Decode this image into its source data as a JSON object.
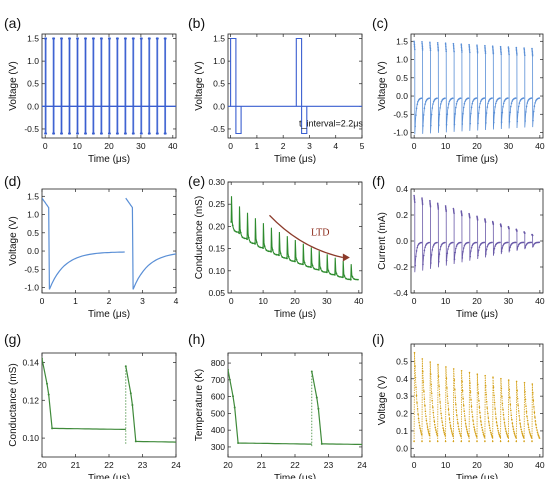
{
  "chart_data": [
    {
      "panel": "(a)",
      "type": "line",
      "color": "#3a5fd0",
      "xlabel": "Time (μs)",
      "ylabel": "Voltage (V)",
      "xlim": [
        -1,
        41
      ],
      "ylim": [
        -0.7,
        1.6
      ],
      "xticks": [
        0,
        10,
        20,
        30,
        40
      ],
      "xtick_labels": [
        "0",
        "10",
        "20",
        "30",
        "40"
      ],
      "yticks": [
        -0.5,
        0.0,
        0.5,
        1.0,
        1.5
      ],
      "ytick_labels": [
        "-0.5",
        "0.0",
        "0.5",
        "1.0",
        "1.5"
      ],
      "pulses": {
        "period": 2.5,
        "count": 16,
        "start": 0,
        "high": 1.5,
        "low": -0.6,
        "baseline": 0.0
      }
    },
    {
      "panel": "(b)",
      "type": "line",
      "color": "#3a5fd0",
      "xlabel": "Time (μs)",
      "ylabel": "Voltage (V)",
      "xlim": [
        -0.1,
        5
      ],
      "ylim": [
        -0.7,
        1.6
      ],
      "xticks": [
        0,
        1,
        2,
        3,
        4,
        5
      ],
      "xtick_labels": [
        "0",
        "1",
        "2",
        "3",
        "4",
        "5"
      ],
      "yticks": [
        -0.5,
        0.0,
        0.5,
        1.0,
        1.5
      ],
      "ytick_labels": [
        "-0.5",
        "0.0",
        "0.5",
        "1.0",
        "1.5"
      ],
      "pulse_times": [
        0,
        2.5
      ],
      "high": 1.5,
      "low": -0.6,
      "high_width": 0.2,
      "low_width": 0.2,
      "annotation": "t_interval=2.2μs"
    },
    {
      "panel": "(c)",
      "type": "line",
      "color": "#5a8fd6",
      "xlabel": "Time (μs)",
      "ylabel": "Voltage (V)",
      "xlim": [
        -1,
        41
      ],
      "ylim": [
        -1.15,
        1.7
      ],
      "xticks": [
        0,
        10,
        20,
        30,
        40
      ],
      "xtick_labels": [
        "0",
        "10",
        "20",
        "30",
        "40"
      ],
      "yticks": [
        -1.0,
        -0.5,
        0.0,
        0.5,
        1.0,
        1.5
      ],
      "ytick_labels": [
        "-1.0",
        "-0.5",
        "0.0",
        "0.5",
        "1.0",
        "1.5"
      ],
      "pulses": {
        "period": 2.5,
        "count": 16,
        "start": 0,
        "peak_first": 1.5,
        "peak_last": 1.3,
        "trough_first": -1.05,
        "trough_last": -0.85,
        "settle": -0.05
      }
    },
    {
      "panel": "(d)",
      "type": "line",
      "color": "#5a8fd6",
      "xlabel": "Time (μs)",
      "ylabel": "Voltage (V)",
      "xlim": [
        0,
        4
      ],
      "ylim": [
        -1.15,
        1.7
      ],
      "xticks": [
        0,
        1,
        2,
        3,
        4
      ],
      "xtick_labels": [
        "0",
        "1",
        "2",
        "3",
        "4"
      ],
      "yticks": [
        -1.0,
        -0.5,
        0.0,
        0.5,
        1.0,
        1.5
      ],
      "ytick_labels": [
        "-1.0",
        "-0.5",
        "0.0",
        "0.5",
        "1.0",
        "1.5"
      ],
      "pulse_times": [
        0,
        2.5
      ],
      "peak": 1.45,
      "trough": -1.05,
      "settle": -0.02
    },
    {
      "panel": "(e)",
      "type": "line",
      "color": "#2e8b2e",
      "xlabel": "Time (μs)",
      "ylabel": "Conductance (mS)",
      "xlim": [
        -1,
        41
      ],
      "ylim": [
        0.05,
        0.3
      ],
      "xticks": [
        0,
        10,
        20,
        30,
        40
      ],
      "xtick_labels": [
        "0",
        "10",
        "20",
        "30",
        "40"
      ],
      "yticks": [
        0.05,
        0.1,
        0.15,
        0.2,
        0.25,
        0.3
      ],
      "ytick_labels": [
        "0.05",
        "0.10",
        "0.15",
        "0.20",
        "0.25",
        "0.30"
      ],
      "annotation": "LTD",
      "pulses": {
        "period": 2.5,
        "count": 16,
        "start": 0,
        "peak_first": 0.268,
        "peak_last": 0.115,
        "floor_first": 0.21,
        "floor_last": 0.08
      }
    },
    {
      "panel": "(f)",
      "type": "line",
      "color": "#6a5aa8",
      "xlabel": "Time (μs)",
      "ylabel": "Current (mA)",
      "xlim": [
        -1,
        41
      ],
      "ylim": [
        -0.4,
        0.4
      ],
      "xticks": [
        0,
        10,
        20,
        30,
        40
      ],
      "xtick_labels": [
        "0",
        "10",
        "20",
        "30",
        "40"
      ],
      "yticks": [
        -0.4,
        -0.2,
        0.0,
        0.2,
        0.4
      ],
      "ytick_labels": [
        "-0.4",
        "-0.2",
        "0.0",
        "0.2",
        "0.4"
      ],
      "pulses": {
        "period": 2.5,
        "count": 16,
        "start": 0,
        "peak_first": 0.35,
        "peak_last": 0.05,
        "trough_first": -0.24,
        "trough_last": -0.05,
        "settle": -0.01
      }
    },
    {
      "panel": "(g)",
      "type": "line",
      "color": "#3f8a3a",
      "xlabel": "Time (μs)",
      "ylabel": "Conductance (mS)",
      "xlim": [
        20,
        24
      ],
      "ylim": [
        0.09,
        0.145
      ],
      "xticks": [
        20,
        21,
        22,
        23,
        24
      ],
      "xtick_labels": [
        "20",
        "21",
        "22",
        "23",
        "24"
      ],
      "yticks": [
        0.1,
        0.12,
        0.14
      ],
      "ytick_labels": [
        "0.10",
        "0.12",
        "0.14"
      ],
      "pulse_times": [
        20,
        22.5
      ],
      "peaks": [
        0.142,
        0.138
      ],
      "floors": [
        0.104,
        0.097
      ]
    },
    {
      "panel": "(h)",
      "type": "line",
      "color": "#3f8a3a",
      "xlabel": "Time (μs)",
      "ylabel": "Temperature (K)",
      "xlim": [
        20,
        24
      ],
      "ylim": [
        240,
        860
      ],
      "xticks": [
        20,
        21,
        22,
        23,
        24
      ],
      "xtick_labels": [
        "20",
        "21",
        "22",
        "23",
        "24"
      ],
      "yticks": [
        300,
        400,
        500,
        600,
        700,
        800
      ],
      "ytick_labels": [
        "300",
        "400",
        "500",
        "600",
        "700",
        "800"
      ],
      "pulse_times": [
        20,
        22.5
      ],
      "peaks": [
        760,
        750
      ],
      "floors": [
        310,
        305
      ]
    },
    {
      "panel": "(i)",
      "type": "line",
      "color": "#d4a017",
      "xlabel": "Time (μs)",
      "ylabel": "Voltage (V)",
      "xlim": [
        -1,
        41
      ],
      "ylim": [
        -0.05,
        0.6
      ],
      "xticks": [
        0,
        10,
        20,
        30,
        40
      ],
      "xtick_labels": [
        "0",
        "10",
        "20",
        "30",
        "40"
      ],
      "yticks": [
        0.0,
        0.1,
        0.2,
        0.3,
        0.4,
        0.5
      ],
      "ytick_labels": [
        "0.0",
        "0.1",
        "0.2",
        "0.3",
        "0.4",
        "0.5"
      ],
      "pulses": {
        "period": 2.5,
        "count": 16,
        "start": 0,
        "peak_first": 0.55,
        "peak_last": 0.37,
        "floor": 0.02
      }
    }
  ]
}
